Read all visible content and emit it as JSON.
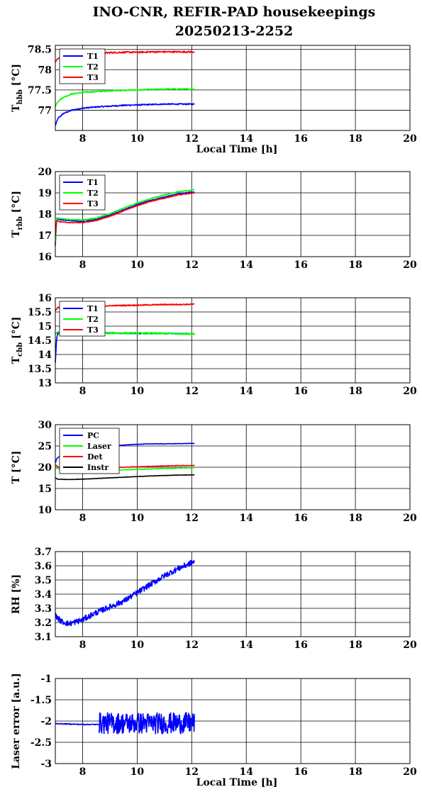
{
  "title": {
    "line1": "INO-CNR, REFIR-PAD housekeepings",
    "line2": "20250213-2252"
  },
  "colors": {
    "blue": "#0000ff",
    "green": "#00ff00",
    "red": "#ff0000",
    "black": "#000000"
  },
  "chart_data": [
    {
      "type": "line",
      "ylabel_main": "T",
      "ylabel_sub": "hbb",
      "ylabel_unit": " [°C]",
      "xlabel": "Local Time [h]",
      "xlim": [
        7,
        20
      ],
      "ylim": [
        76.5,
        78.6
      ],
      "xticks": [
        8,
        10,
        12,
        14,
        16,
        18,
        20
      ],
      "yticks": [
        77,
        77.5,
        78,
        78.5
      ],
      "ytick_labels": [
        "77",
        "77.5",
        "78",
        "78.5"
      ],
      "grid": true,
      "legend_position": "top-left",
      "series": [
        {
          "name": "T1",
          "color": "#0000ff",
          "noise": 0.015,
          "x": [
            7.0,
            7.1,
            7.3,
            7.6,
            8.0,
            8.5,
            9.0,
            9.5,
            10.0,
            10.5,
            11.0,
            11.5,
            12.1
          ],
          "y": [
            76.62,
            76.8,
            76.92,
            77.0,
            77.05,
            77.08,
            77.1,
            77.12,
            77.13,
            77.14,
            77.15,
            77.15,
            77.15
          ]
        },
        {
          "name": "T2",
          "color": "#00ff00",
          "noise": 0.015,
          "x": [
            7.0,
            7.1,
            7.3,
            7.6,
            8.0,
            8.5,
            9.0,
            9.5,
            10.0,
            10.5,
            11.0,
            11.5,
            12.1
          ],
          "y": [
            77.1,
            77.22,
            77.32,
            77.4,
            77.44,
            77.46,
            77.48,
            77.49,
            77.5,
            77.51,
            77.52,
            77.52,
            77.52
          ]
        },
        {
          "name": "T3",
          "color": "#ff0000",
          "noise": 0.02,
          "x": [
            7.0,
            7.1,
            7.3,
            7.6,
            8.0,
            8.5,
            9.0,
            9.5,
            10.0,
            10.5,
            11.0,
            11.5,
            12.1
          ],
          "y": [
            78.2,
            78.28,
            78.32,
            78.36,
            78.38,
            78.4,
            78.42,
            78.43,
            78.43,
            78.44,
            78.44,
            78.44,
            78.44
          ]
        }
      ]
    },
    {
      "type": "line",
      "ylabel_main": "T",
      "ylabel_sub": "rbb",
      "ylabel_unit": " [°C]",
      "xlabel": "",
      "xlim": [
        7,
        20
      ],
      "ylim": [
        16,
        20
      ],
      "xticks": [
        8,
        10,
        12,
        14,
        16,
        18,
        20
      ],
      "yticks": [
        16,
        17,
        18,
        19,
        20
      ],
      "ytick_labels": [
        "16",
        "17",
        "18",
        "19",
        "20"
      ],
      "grid": true,
      "legend_position": "top-left",
      "series": [
        {
          "name": "T1",
          "color": "#0000ff",
          "noise": 0.02,
          "x": [
            7.0,
            7.05,
            7.1,
            7.5,
            8.0,
            8.5,
            9.0,
            9.5,
            10.0,
            10.5,
            11.0,
            11.5,
            12.1
          ],
          "y": [
            16.5,
            17.8,
            17.75,
            17.7,
            17.65,
            17.75,
            17.95,
            18.2,
            18.45,
            18.65,
            18.8,
            18.95,
            19.05
          ]
        },
        {
          "name": "T2",
          "color": "#00ff00",
          "noise": 0.02,
          "x": [
            7.0,
            7.05,
            7.1,
            7.5,
            8.0,
            8.5,
            9.0,
            9.5,
            10.0,
            10.5,
            11.0,
            11.5,
            12.1
          ],
          "y": [
            16.6,
            17.85,
            17.8,
            17.75,
            17.72,
            17.82,
            18.02,
            18.28,
            18.52,
            18.73,
            18.9,
            19.05,
            19.15
          ]
        },
        {
          "name": "T3",
          "color": "#ff0000",
          "noise": 0.02,
          "x": [
            7.0,
            7.05,
            7.1,
            7.5,
            8.0,
            8.5,
            9.0,
            9.5,
            10.0,
            10.5,
            11.0,
            11.5,
            12.1
          ],
          "y": [
            17.0,
            17.7,
            17.65,
            17.6,
            17.6,
            17.7,
            17.9,
            18.15,
            18.4,
            18.6,
            18.75,
            18.9,
            19.0
          ]
        }
      ]
    },
    {
      "type": "line",
      "ylabel_main": "T",
      "ylabel_sub": "cbb",
      "ylabel_unit": " [°C]",
      "xlabel": "",
      "xlim": [
        7,
        20
      ],
      "ylim": [
        13,
        16
      ],
      "xticks": [
        8,
        10,
        12,
        14,
        16,
        18,
        20
      ],
      "yticks": [
        13,
        13.5,
        14,
        14.5,
        15,
        15.5,
        16
      ],
      "ytick_labels": [
        "13",
        "13.5",
        "14",
        "14.5",
        "15",
        "15.5",
        "16"
      ],
      "grid": true,
      "legend_position": "top-left",
      "series": [
        {
          "name": "T1",
          "color": "#0000ff",
          "noise": 0.015,
          "x": [
            7.0,
            7.05,
            7.1,
            7.3,
            8.0,
            9.0,
            10.0,
            11.0,
            12.1
          ],
          "y": [
            13.7,
            14.6,
            14.75,
            14.75,
            14.75,
            14.75,
            14.74,
            14.74,
            14.73
          ]
        },
        {
          "name": "T2",
          "color": "#00ff00",
          "noise": 0.03,
          "x": [
            7.0,
            7.05,
            7.1,
            7.3,
            8.0,
            9.0,
            10.0,
            11.0,
            12.1
          ],
          "y": [
            14.7,
            14.75,
            14.78,
            14.78,
            14.78,
            14.76,
            14.75,
            14.74,
            14.73
          ]
        },
        {
          "name": "T3",
          "color": "#ff0000",
          "noise": 0.02,
          "x": [
            7.0,
            7.05,
            7.1,
            7.3,
            8.0,
            9.0,
            10.0,
            11.0,
            12.1
          ],
          "y": [
            15.55,
            15.62,
            15.66,
            15.68,
            15.7,
            15.72,
            15.74,
            15.76,
            15.77
          ]
        }
      ]
    },
    {
      "type": "line",
      "ylabel_main": "T",
      "ylabel_sub": "",
      "ylabel_unit": " [°C]",
      "xlabel": "",
      "xlim": [
        7,
        20
      ],
      "ylim": [
        10,
        30
      ],
      "xticks": [
        8,
        10,
        12,
        14,
        16,
        18,
        20
      ],
      "yticks": [
        10,
        15,
        20,
        25,
        30
      ],
      "ytick_labels": [
        "10",
        "15",
        "20",
        "25",
        "30"
      ],
      "grid": true,
      "legend_position": "top-left",
      "series": [
        {
          "name": "PC",
          "color": "#0000ff",
          "noise": 0.05,
          "x": [
            7.0,
            7.05,
            7.2,
            7.5,
            8.0,
            8.5,
            9.0,
            9.5,
            10.0,
            10.5,
            11.0,
            11.5,
            12.1
          ],
          "y": [
            21.0,
            22.0,
            22.8,
            23.6,
            24.2,
            24.7,
            25.0,
            25.2,
            25.4,
            25.5,
            25.5,
            25.55,
            25.6
          ]
        },
        {
          "name": "Laser",
          "color": "#00ff00",
          "noise": 0.06,
          "x": [
            7.0,
            7.2,
            7.6,
            8.0,
            8.5,
            9.0,
            9.5,
            10.0,
            10.5,
            11.0,
            11.5,
            12.1
          ],
          "y": [
            20.0,
            19.4,
            19.1,
            19.0,
            19.1,
            19.3,
            19.4,
            19.5,
            19.6,
            19.7,
            19.8,
            19.9
          ]
        },
        {
          "name": "Det",
          "color": "#ff0000",
          "noise": 0.06,
          "x": [
            7.0,
            7.2,
            7.6,
            8.0,
            8.5,
            9.0,
            9.5,
            10.0,
            10.5,
            11.0,
            11.5,
            12.1
          ],
          "y": [
            20.5,
            19.8,
            19.4,
            19.5,
            19.7,
            19.9,
            20.0,
            20.1,
            20.2,
            20.3,
            20.4,
            20.4
          ]
        },
        {
          "name": "Instr",
          "color": "#000000",
          "noise": 0.04,
          "x": [
            7.0,
            7.1,
            7.5,
            8.0,
            8.5,
            9.0,
            9.5,
            10.0,
            10.5,
            11.0,
            11.5,
            12.1
          ],
          "y": [
            17.5,
            17.2,
            17.1,
            17.2,
            17.35,
            17.5,
            17.65,
            17.8,
            17.95,
            18.05,
            18.15,
            18.2
          ]
        }
      ]
    },
    {
      "type": "line",
      "ylabel_main": "RH [%]",
      "ylabel_sub": "",
      "ylabel_unit": "",
      "xlabel": "",
      "xlim": [
        7,
        20
      ],
      "ylim": [
        3.1,
        3.7
      ],
      "xticks": [
        8,
        10,
        12,
        14,
        16,
        18,
        20
      ],
      "yticks": [
        3.1,
        3.2,
        3.3,
        3.4,
        3.5,
        3.6,
        3.7
      ],
      "ytick_labels": [
        "3.1",
        "3.2",
        "3.3",
        "3.4",
        "3.5",
        "3.6",
        "3.7"
      ],
      "grid": true,
      "legend_position": "none",
      "series": [
        {
          "name": "",
          "color": "#0000ff",
          "noise": 0.02,
          "x": [
            7.0,
            7.2,
            7.5,
            8.0,
            8.5,
            9.0,
            9.5,
            10.0,
            10.5,
            11.0,
            11.5,
            12.1
          ],
          "y": [
            3.25,
            3.21,
            3.19,
            3.22,
            3.27,
            3.31,
            3.35,
            3.41,
            3.47,
            3.53,
            3.58,
            3.63
          ]
        }
      ]
    },
    {
      "type": "line",
      "ylabel_main": "Laser error [a.u.]",
      "ylabel_sub": "",
      "ylabel_unit": "",
      "xlabel": "Local Time [h]",
      "xlim": [
        7,
        20
      ],
      "ylim": [
        -3,
        -1
      ],
      "xticks": [
        8,
        10,
        12,
        14,
        16,
        18,
        20
      ],
      "yticks": [
        -3,
        -2.5,
        -2,
        -1.5,
        -1
      ],
      "ytick_labels": [
        "-3",
        "-2.5",
        "-2",
        "-1.5",
        "-1"
      ],
      "grid": true,
      "legend_position": "none",
      "series": [
        {
          "name": "",
          "color": "#0000ff",
          "noise": 0.01,
          "x": [
            7.0,
            7.5,
            8.0,
            8.5,
            8.6
          ],
          "y": [
            -2.06,
            -2.07,
            -2.08,
            -2.08,
            -2.08
          ]
        },
        {
          "name": "",
          "color": "#0000ff",
          "noise": 0.25,
          "x": [
            8.6,
            9.0,
            9.5,
            10.0,
            10.5,
            11.0,
            11.5,
            12.1
          ],
          "y": [
            -2.05,
            -2.05,
            -2.05,
            -2.05,
            -2.05,
            -2.05,
            -2.05,
            -2.05
          ]
        }
      ]
    }
  ]
}
